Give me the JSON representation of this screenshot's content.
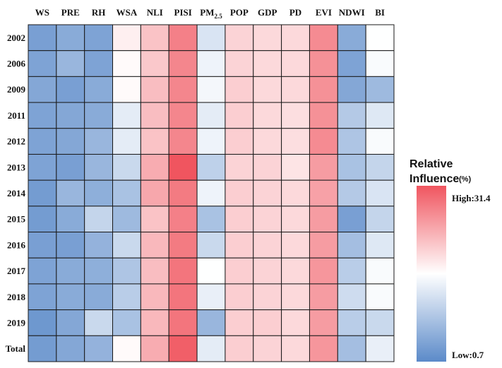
{
  "chart_data": {
    "type": "heatmap",
    "columns": [
      "WS",
      "PRE",
      "RH",
      "WSA",
      "NLI",
      "PISI",
      "PM2.5",
      "POP",
      "GDP",
      "PD",
      "EVI",
      "NDWI",
      "BI"
    ],
    "rows": [
      "2002",
      "2006",
      "2009",
      "2011",
      "2012",
      "2013",
      "2014",
      "2015",
      "2016",
      "2017",
      "2018",
      "2019",
      "Total"
    ],
    "values": [
      [
        3.5,
        5.0,
        4.0,
        17.5,
        21.5,
        27.5,
        12.5,
        20.0,
        19.5,
        19.5,
        26.5,
        5.0,
        16.0
      ],
      [
        4.0,
        6.5,
        4.0,
        16.5,
        21.0,
        27.0,
        14.5,
        20.0,
        19.5,
        19.5,
        26.0,
        4.0,
        15.5
      ],
      [
        4.5,
        3.5,
        5.0,
        16.5,
        22.0,
        27.0,
        15.0,
        20.5,
        19.5,
        19.5,
        26.0,
        4.5,
        7.0
      ],
      [
        4.0,
        4.5,
        5.0,
        13.5,
        22.0,
        27.0,
        13.5,
        20.5,
        19.5,
        19.0,
        26.0,
        9.0,
        13.0
      ],
      [
        4.0,
        4.5,
        6.5,
        13.5,
        21.5,
        27.0,
        14.5,
        20.5,
        19.5,
        19.0,
        26.5,
        8.5,
        15.5
      ],
      [
        4.0,
        3.5,
        6.5,
        11.0,
        23.5,
        31.4,
        10.0,
        20.0,
        20.0,
        18.5,
        25.0,
        8.0,
        10.5
      ],
      [
        3.0,
        6.5,
        5.5,
        8.0,
        24.0,
        28.0,
        14.5,
        20.5,
        20.0,
        19.5,
        24.5,
        9.0,
        12.5
      ],
      [
        3.0,
        5.0,
        10.5,
        7.0,
        21.5,
        27.5,
        8.0,
        20.5,
        20.0,
        19.5,
        25.0,
        3.5,
        10.5
      ],
      [
        3.5,
        3.5,
        6.0,
        11.0,
        22.5,
        28.0,
        11.0,
        20.5,
        20.0,
        19.5,
        25.0,
        7.5,
        13.0
      ],
      [
        4.0,
        5.0,
        5.5,
        8.5,
        22.0,
        28.5,
        16.0,
        20.5,
        20.0,
        19.5,
        25.5,
        9.5,
        15.5
      ],
      [
        4.0,
        5.0,
        5.0,
        9.5,
        22.5,
        28.5,
        14.0,
        20.5,
        20.0,
        19.5,
        25.0,
        11.5,
        15.5
      ],
      [
        2.5,
        4.5,
        11.0,
        8.0,
        22.5,
        28.5,
        6.5,
        20.5,
        20.5,
        19.5,
        25.0,
        9.5,
        11.0
      ],
      [
        3.0,
        4.5,
        6.0,
        16.5,
        23.5,
        30.5,
        13.5,
        20.5,
        20.0,
        19.5,
        25.5,
        7.5,
        14.0
      ]
    ],
    "scale": {
      "min": 0.7,
      "max": 31.4,
      "low_color": "#5b8ac9",
      "mid_color": "#ffffff",
      "high_color": "#f0555f"
    },
    "legend": {
      "title_line1": "Relative",
      "title_line2": "Influence",
      "unit": "(%)",
      "high_label": "High:31.4",
      "low_label": "Low:0.7",
      "placement": "right"
    }
  }
}
